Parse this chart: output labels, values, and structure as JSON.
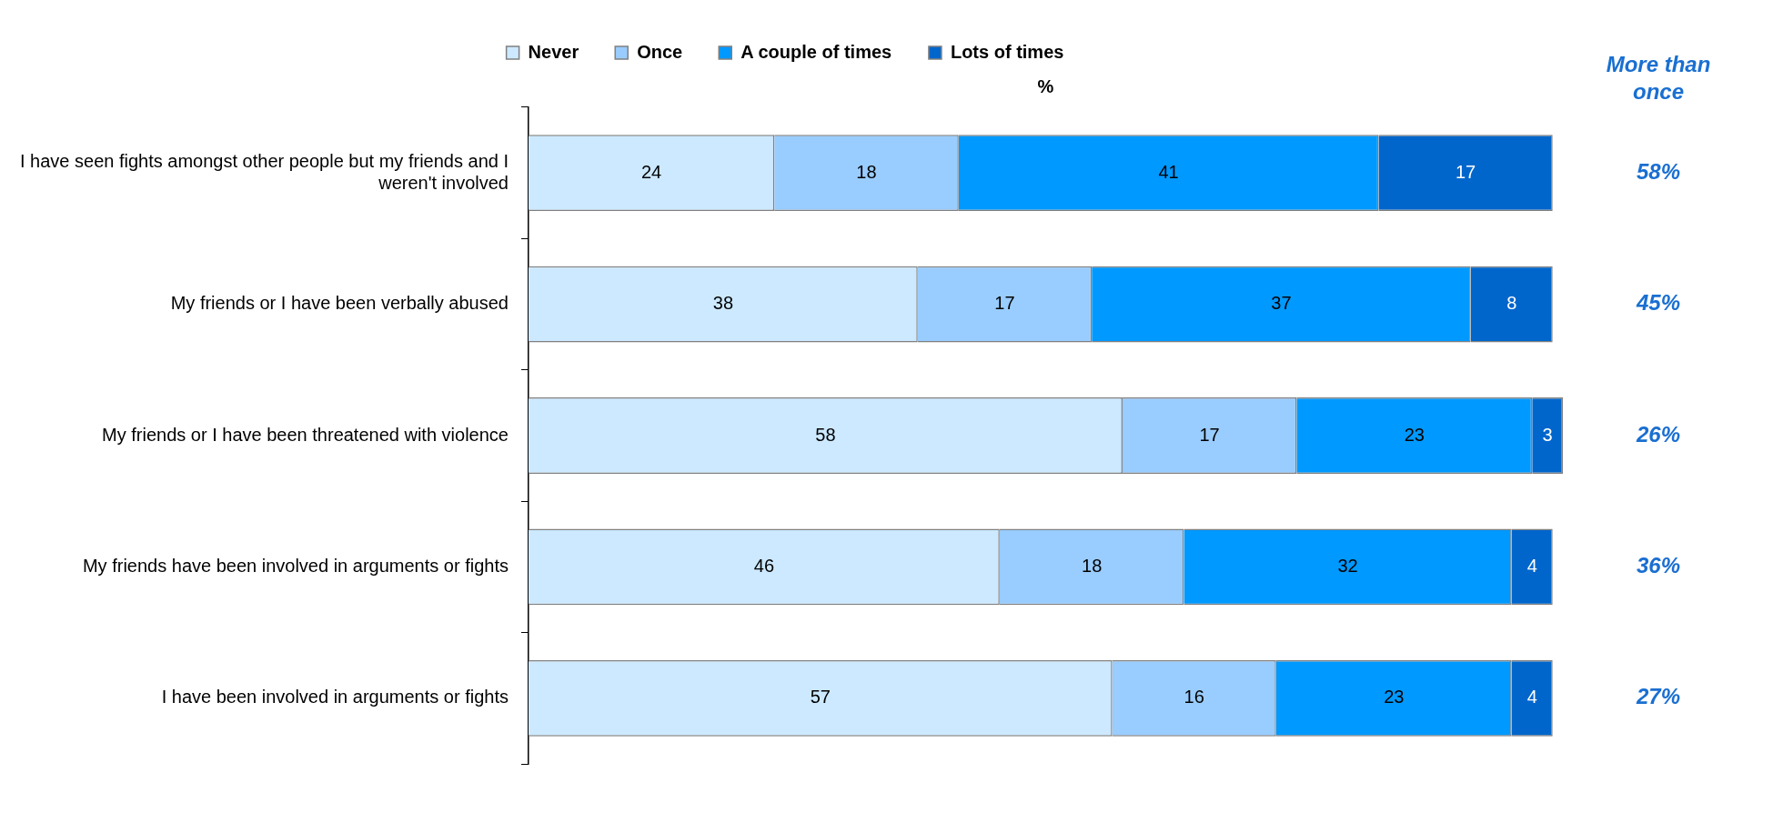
{
  "chart_data": {
    "type": "bar",
    "orientation": "horizontal",
    "stacked": true,
    "data_labels": true,
    "legend": "top",
    "grid": false,
    "xlabel": "%",
    "categories": [
      "I have seen fights amongst other people but my friends and I weren't involved",
      "My friends or I have been verbally abused",
      "My friends or I have been threatened with violence",
      "My friends have been involved in arguments or fights",
      "I have been involved in arguments or fights"
    ],
    "series": [
      {
        "name": "Never",
        "color": "#cce9ff",
        "values": [
          24,
          38,
          58,
          46,
          57
        ]
      },
      {
        "name": "Once",
        "color": "#99ccff",
        "values": [
          18,
          17,
          17,
          18,
          16
        ]
      },
      {
        "name": "A couple of times",
        "color": "#0099ff",
        "values": [
          41,
          37,
          23,
          32,
          23
        ]
      },
      {
        "name": "Lots of times",
        "color": "#0066cc",
        "values": [
          17,
          8,
          3,
          4,
          4
        ]
      }
    ],
    "annotations": [
      "More than once",
      "58%",
      "45%",
      "26%",
      "36%",
      "27%"
    ]
  }
}
